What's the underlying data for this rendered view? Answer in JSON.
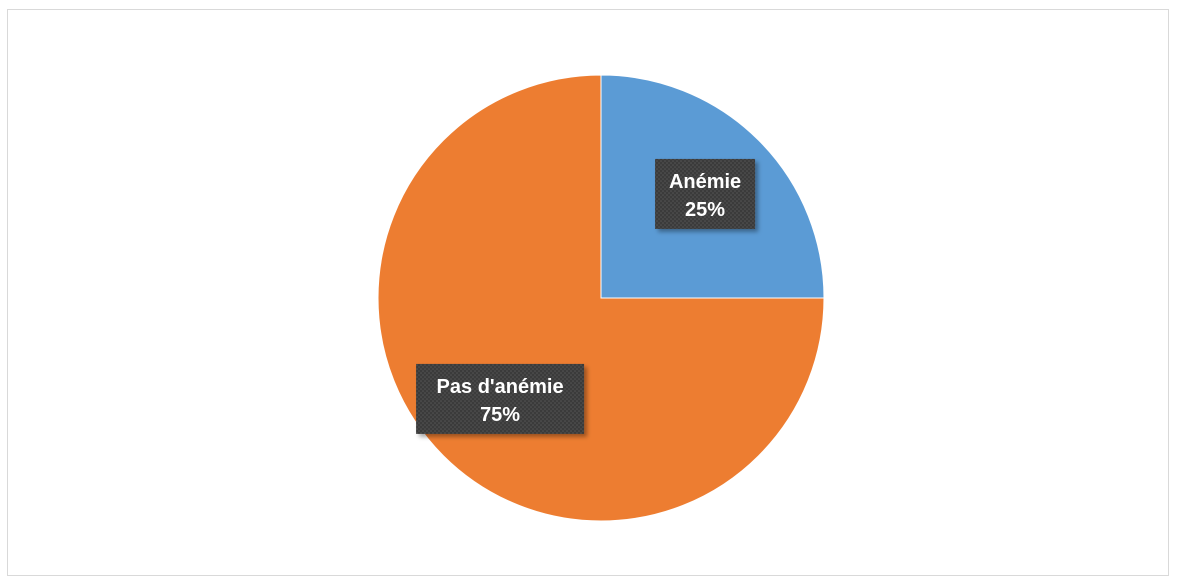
{
  "chart_data": {
    "type": "pie",
    "categories": [
      "Anémie",
      "Pas d'anémie"
    ],
    "values": [
      25,
      75
    ],
    "value_labels": [
      "25%",
      "75%"
    ],
    "colors": [
      "#5B9BD5",
      "#ED7D31"
    ],
    "label_box_color": "#404040",
    "start_angle_deg": 0,
    "direction": "clockwise",
    "legend": "none",
    "title": ""
  }
}
